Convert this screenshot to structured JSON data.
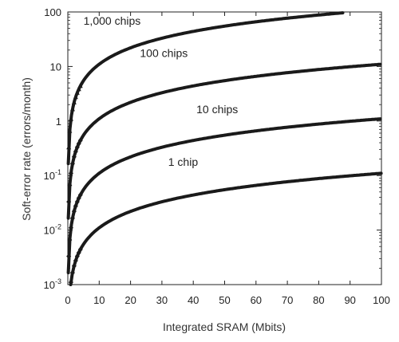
{
  "chart_data": {
    "type": "scatter",
    "title": "",
    "xlabel": "Integrated SRAM (Mbits)",
    "ylabel": "Soft-error rate (errors/month)",
    "xlim": [
      0,
      100
    ],
    "ylim": [
      0.001,
      100
    ],
    "yscale": "log",
    "grid": false,
    "legend": "none",
    "x_ticks": [
      "0",
      "10",
      "20",
      "30",
      "40",
      "50",
      "60",
      "70",
      "80",
      "90",
      "100"
    ],
    "y_ticks": [
      {
        "value": 0.001,
        "base": "10",
        "exp": "-3"
      },
      {
        "value": 0.01,
        "base": "10",
        "exp": "-2"
      },
      {
        "value": 0.1,
        "base": "10",
        "exp": "-1"
      },
      {
        "value": 1,
        "base": "1",
        "exp": ""
      },
      {
        "value": 10,
        "base": "10",
        "exp": ""
      },
      {
        "value": 100,
        "base": "100",
        "exp": ""
      }
    ],
    "series": [
      {
        "name": "1 chip",
        "slope": 0.0011,
        "x_max": 100,
        "marker": "diamond",
        "label_x": 32,
        "label_y": 0.15
      },
      {
        "name": "10 chips",
        "slope": 0.011,
        "x_max": 100,
        "marker": "diamond",
        "label_x": 41,
        "label_y": 1.4
      },
      {
        "name": "100 chips",
        "slope": 0.11,
        "x_max": 100,
        "marker": "diamond",
        "label_x": 23,
        "label_y": 15
      },
      {
        "name": "1,000 chips",
        "slope": 1.1,
        "x_max": 88,
        "marker": "triangle",
        "label_x": 5,
        "label_y": 58
      }
    ],
    "color": "#1a1a1a"
  }
}
